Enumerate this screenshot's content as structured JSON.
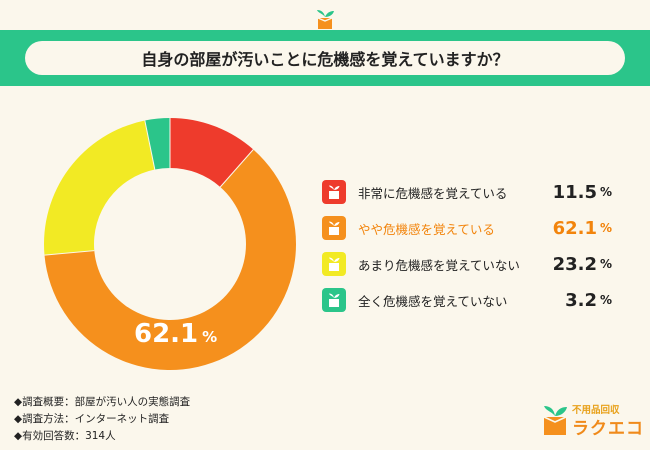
{
  "title": "自身の部屋が汚いことに危機感を覚えていますか？",
  "chart_data": {
    "type": "pie",
    "title": "自身の部屋が汚いことに危機感を覚えていますか？",
    "categories": [
      "非常に危機感を覚えている",
      "やや危機感を覚えている",
      "あまり危機感を覚えていない",
      "全く危機感を覚えていない"
    ],
    "values": [
      11.5,
      62.1,
      23.2,
      3.2
    ],
    "value_labels": [
      "11.5",
      "62.1",
      "23.2",
      "3.2"
    ],
    "unit": "%",
    "colors": [
      "#ee3b2c",
      "#f5901d",
      "#f2ea24",
      "#2bc58a"
    ],
    "highlight_index": 1,
    "highlight_color": "#f2840c",
    "in_chart_label": "62.1",
    "legend_position": "right"
  },
  "notes": [
    "◆調査概要：部屋が汚い人の実態調査",
    "◆調査方法：インターネット調査",
    "◆有効回答数：314人"
  ],
  "brand": {
    "sub": "不用品回収",
    "main": "ラクエコ"
  },
  "icons": [
    "sprout-box-logo-icon"
  ]
}
